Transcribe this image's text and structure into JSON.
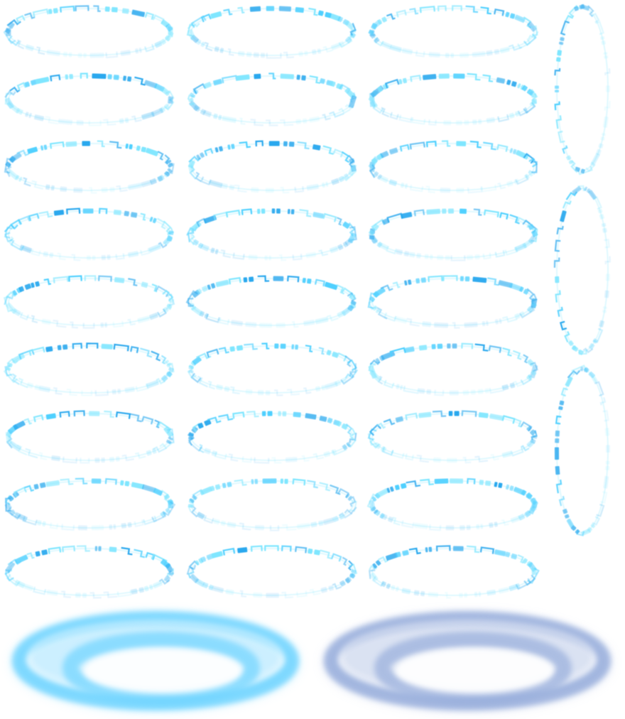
{
  "sprite_sheet": {
    "background": "#ffffff",
    "palette": {
      "glyph_light": "#7fe6ff",
      "glyph_mid": "#4fd0ff",
      "glyph_deep": "#29a8ee",
      "glow_cyan": "#6fd4ff",
      "glow_steel": "#98aedc"
    },
    "horizontal_ring_frames": {
      "columns": 3,
      "rows": 9,
      "icon": "rune-ring-icon"
    },
    "vertical_ring_frames": {
      "count": 3,
      "icon": "rune-ring-vertical-icon"
    },
    "glow_discs": [
      {
        "name": "cyan-glow-disc",
        "color": "#6fd4ff"
      },
      {
        "name": "steel-glow-disc",
        "color": "#98aedc"
      }
    ]
  }
}
